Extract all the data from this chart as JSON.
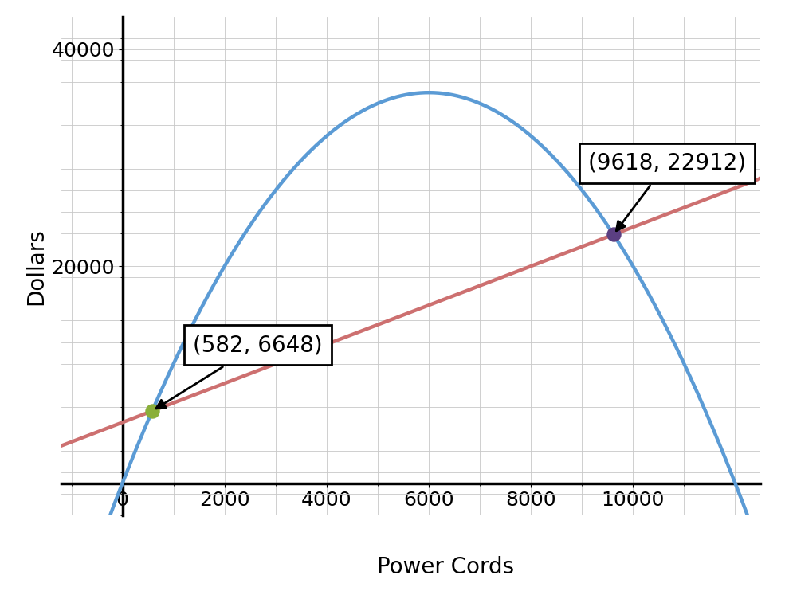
{
  "xlim": [
    -1200,
    12500
  ],
  "ylim": [
    -3000,
    43000
  ],
  "xticks": [
    0,
    2000,
    4000,
    6000,
    8000,
    10000
  ],
  "yticks": [
    20000,
    40000
  ],
  "xlabel": "Power Cords",
  "ylabel": "Dollars",
  "revenue_color": "#5b9bd5",
  "cost_color": "#cd7070",
  "revenue_lw": 3.2,
  "cost_lw": 3.2,
  "intersection1": [
    582,
    6648
  ],
  "intersection2": [
    9618,
    22912
  ],
  "point1_color": "#8aaf3a",
  "point2_color": "#5b3f82",
  "point_size": 150,
  "annotation_fontsize": 20,
  "axis_label_fontsize": 20,
  "tick_fontsize": 18,
  "background_color": "#ffffff",
  "grid_color": "#c8c8c8",
  "revenue_a": -0.001,
  "revenue_b": 12.0,
  "revenue_c": 0,
  "cost_slope": 1.8,
  "cost_intercept": 5600
}
